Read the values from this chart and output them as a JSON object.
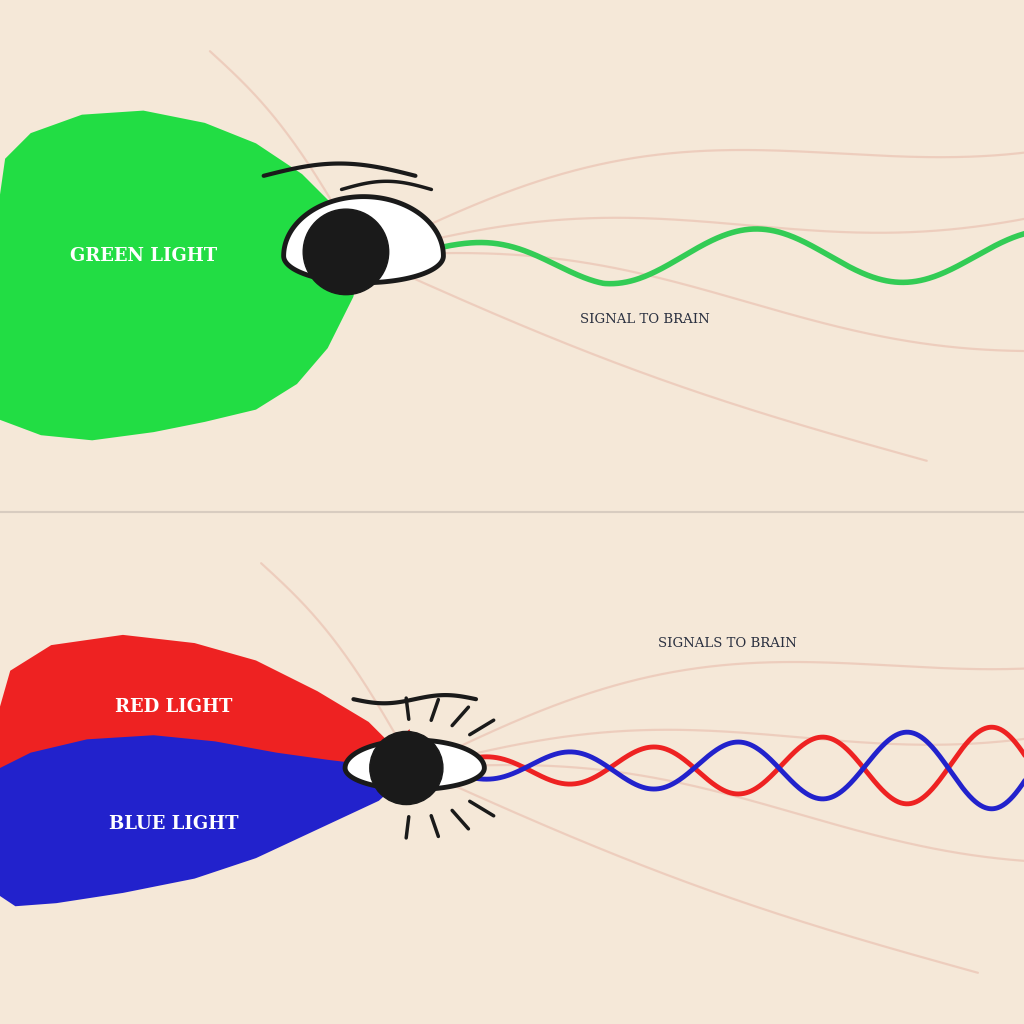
{
  "bg_color": "#f5e8d8",
  "nerve_color": "#e8b8a8",
  "divider_color": "#d8ccc0",
  "eye_white": "#ffffff",
  "eye_black": "#1a1a1a",
  "green_light_color": "#22dd44",
  "green_signal_color": "#33cc55",
  "red_light_color": "#ee2222",
  "blue_light_color": "#2222cc",
  "text_color": "#2a3040",
  "label_color": "#ffffff",
  "top_label": "GREEN LIGHT",
  "top_signal_label": "SIGNAL TO BRAIN",
  "bottom_red_label": "RED LIGHT",
  "bottom_blue_label": "BLUE LIGHT",
  "bottom_signal_label": "SIGNALS TO BRAIN"
}
